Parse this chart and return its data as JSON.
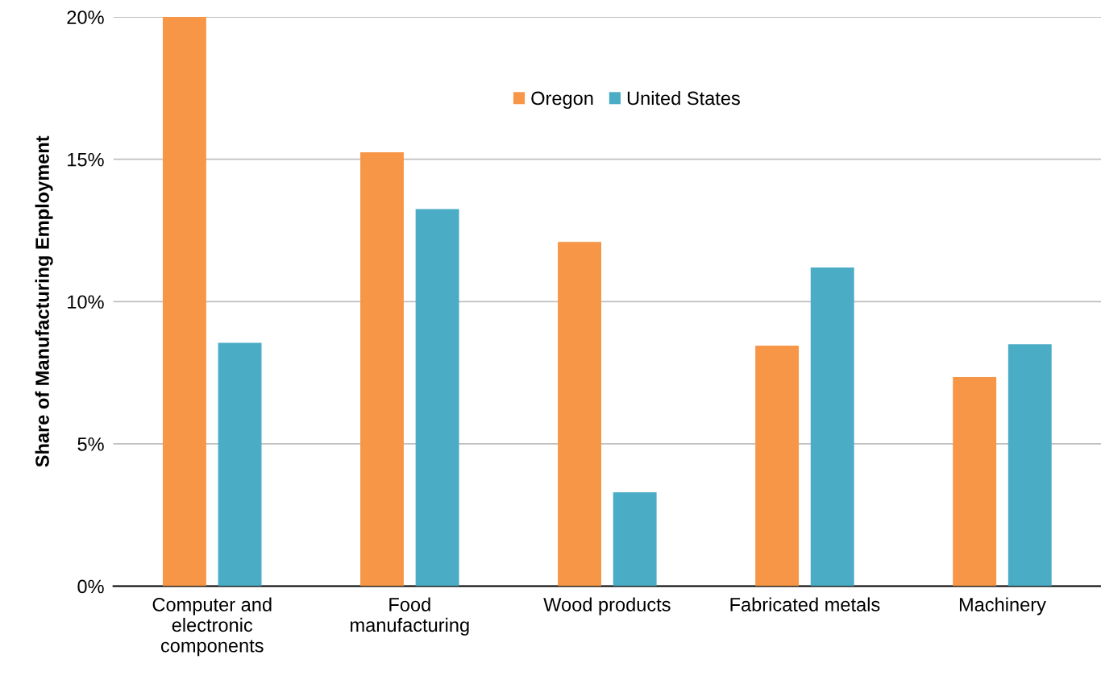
{
  "chart_data": {
    "type": "bar",
    "ylabel": "Share of Manufacturing Employment",
    "categories": [
      "Computer and\nelectronic\ncomponents",
      "Food\nmanufacturing",
      "Wood products",
      "Fabricated metals",
      "Machinery"
    ],
    "series": [
      {
        "name": "Oregon",
        "color": "#f79646",
        "values": [
          20.0,
          15.25,
          12.1,
          8.45,
          7.35
        ]
      },
      {
        "name": "United States",
        "color": "#4bacc6",
        "values": [
          8.55,
          13.25,
          3.3,
          11.2,
          8.5
        ]
      }
    ],
    "ylim": [
      0,
      20
    ],
    "yticks": [
      {
        "value": 0,
        "label": "0%"
      },
      {
        "value": 5,
        "label": "5%"
      },
      {
        "value": 10,
        "label": "10%"
      },
      {
        "value": 15,
        "label": "15%"
      },
      {
        "value": 20,
        "label": "20%"
      }
    ],
    "grid": "y",
    "legend": "top"
  }
}
